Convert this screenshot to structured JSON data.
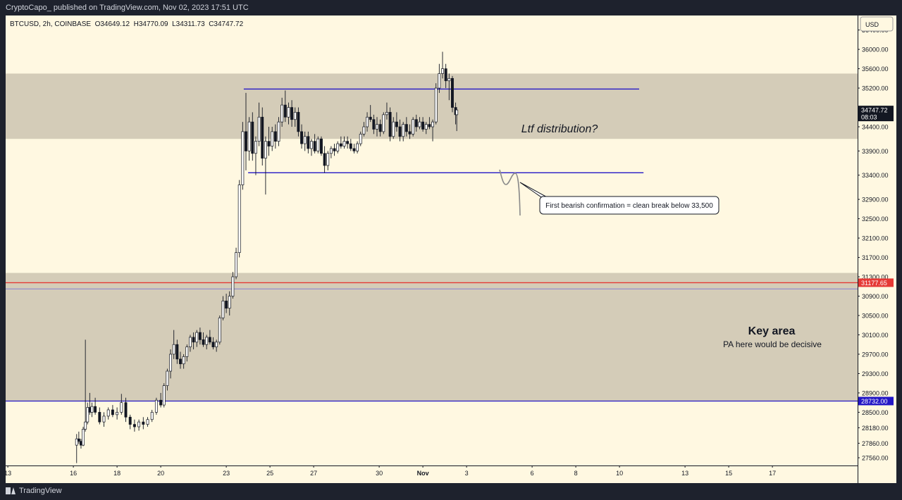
{
  "header": {
    "publish_info": "CryptoCapo_ published on TradingView.com, Nov 02, 2023 17:51 UTC"
  },
  "footer": {
    "brand": "TradingView",
    "brand_icon": "tradingview-logo-icon"
  },
  "colors": {
    "background": "#fff8e1",
    "zone": "#d4ccb8",
    "candle_up": "#ffffff",
    "candle_down": "#131722",
    "level_line": "#2317c6",
    "red_line": "#e53935",
    "price_tag_dark": "#131722",
    "price_tag_red": "#e53935",
    "price_tag_blue": "#2317c6"
  },
  "chart_data": {
    "type": "candlestick",
    "symbol_line": "BTCUSD, 2h, COINBASE  O34649.12  H34770.09  L34311.73  C34747.72",
    "currency": "USD",
    "ylim": [
      27400,
      36700
    ],
    "y_ticks": [
      "36400.00",
      "36000.00",
      "35600.00",
      "35200.00",
      "34400.00",
      "33900.00",
      "33400.00",
      "32900.00",
      "32500.00",
      "32100.00",
      "31700.00",
      "31300.00",
      "30900.00",
      "30500.00",
      "30100.00",
      "29700.00",
      "29300.00",
      "28900.00",
      "28500.00",
      "28180.00",
      "27860.00",
      "27560.00"
    ],
    "x_ticks": [
      {
        "label": "13",
        "day": 13
      },
      {
        "label": "16",
        "day": 16
      },
      {
        "label": "18",
        "day": 18
      },
      {
        "label": "20",
        "day": 20
      },
      {
        "label": "23",
        "day": 23
      },
      {
        "label": "25",
        "day": 25
      },
      {
        "label": "27",
        "day": 27
      },
      {
        "label": "30",
        "day": 30
      },
      {
        "label": "Nov",
        "day": 32
      },
      {
        "label": "3",
        "day": 34
      },
      {
        "label": "6",
        "day": 37
      },
      {
        "label": "8",
        "day": 39
      },
      {
        "label": "10",
        "day": 41
      },
      {
        "label": "13",
        "day": 44
      },
      {
        "label": "15",
        "day": 46
      },
      {
        "label": "17",
        "day": 48
      }
    ],
    "xlim_day": [
      12.9,
      51.9
    ],
    "price_labels": [
      {
        "value": 34747.72,
        "text": "34747.72",
        "sub": "08:03",
        "style": "dark"
      },
      {
        "value": 31177.65,
        "text": "31177.65",
        "style": "red"
      },
      {
        "value": 28732.0,
        "text": "28732.00",
        "style": "blue"
      }
    ],
    "zones": [
      {
        "from": 34150,
        "to": 35500
      },
      {
        "from": 28732,
        "to": 31380
      }
    ],
    "horizontal_lines": [
      {
        "value": 31177.65,
        "color": "red",
        "from_day": 12.9,
        "to_day": 51.9
      },
      {
        "value": 31050,
        "color": "blue-thin",
        "from_day": 12.9,
        "to_day": 51.9
      },
      {
        "value": 28732,
        "color": "blue",
        "from_day": 12.9,
        "to_day": 51.9
      },
      {
        "value": 35180,
        "color": "blue",
        "from_day": 23.8,
        "to_day": 41.9
      },
      {
        "value": 33450,
        "color": "blue",
        "from_day": 24.0,
        "to_day": 42.1
      }
    ],
    "annotations": {
      "ltf_text": "Ltf distribution?",
      "key_area_title": "Key area",
      "key_area_subtitle": "PA here would be decisive",
      "callout_text": "First bearish confirmation = clean break below 33,500"
    },
    "candles": [
      {
        "d": 16.15,
        "o": 27820,
        "h": 28050,
        "l": 27450,
        "c": 27950
      },
      {
        "d": 16.25,
        "o": 27950,
        "h": 28100,
        "l": 27850,
        "c": 27900
      },
      {
        "d": 16.35,
        "o": 27900,
        "h": 27950,
        "l": 27750,
        "c": 27820
      },
      {
        "d": 16.45,
        "o": 27820,
        "h": 28200,
        "l": 27800,
        "c": 28150
      },
      {
        "d": 16.55,
        "o": 28150,
        "h": 30000,
        "l": 28100,
        "c": 28300
      },
      {
        "d": 16.65,
        "o": 28300,
        "h": 28700,
        "l": 28250,
        "c": 28600
      },
      {
        "d": 16.75,
        "o": 28600,
        "h": 28900,
        "l": 28450,
        "c": 28500
      },
      {
        "d": 16.85,
        "o": 28500,
        "h": 28700,
        "l": 28400,
        "c": 28620
      },
      {
        "d": 17.0,
        "o": 28620,
        "h": 28800,
        "l": 28450,
        "c": 28500
      },
      {
        "d": 17.2,
        "o": 28500,
        "h": 28600,
        "l": 28250,
        "c": 28300
      },
      {
        "d": 17.4,
        "o": 28300,
        "h": 28500,
        "l": 28200,
        "c": 28420
      },
      {
        "d": 17.6,
        "o": 28420,
        "h": 28600,
        "l": 28350,
        "c": 28550
      },
      {
        "d": 17.8,
        "o": 28550,
        "h": 28650,
        "l": 28400,
        "c": 28450
      },
      {
        "d": 18.0,
        "o": 28450,
        "h": 28600,
        "l": 28350,
        "c": 28500
      },
      {
        "d": 18.2,
        "o": 28500,
        "h": 28880,
        "l": 28450,
        "c": 28700
      },
      {
        "d": 18.4,
        "o": 28700,
        "h": 28800,
        "l": 28300,
        "c": 28400
      },
      {
        "d": 18.6,
        "o": 28400,
        "h": 28450,
        "l": 28150,
        "c": 28250
      },
      {
        "d": 18.8,
        "o": 28250,
        "h": 28350,
        "l": 28100,
        "c": 28200
      },
      {
        "d": 19.0,
        "o": 28200,
        "h": 28350,
        "l": 28120,
        "c": 28300
      },
      {
        "d": 19.2,
        "o": 28300,
        "h": 28400,
        "l": 28150,
        "c": 28250
      },
      {
        "d": 19.4,
        "o": 28250,
        "h": 28400,
        "l": 28200,
        "c": 28350
      },
      {
        "d": 19.6,
        "o": 28350,
        "h": 28550,
        "l": 28300,
        "c": 28500
      },
      {
        "d": 19.8,
        "o": 28500,
        "h": 28800,
        "l": 28450,
        "c": 28750
      },
      {
        "d": 20.0,
        "o": 28750,
        "h": 28900,
        "l": 28600,
        "c": 28650
      },
      {
        "d": 20.15,
        "o": 28650,
        "h": 29100,
        "l": 28600,
        "c": 29050
      },
      {
        "d": 20.3,
        "o": 29050,
        "h": 29400,
        "l": 28950,
        "c": 29350
      },
      {
        "d": 20.45,
        "o": 29350,
        "h": 29800,
        "l": 29200,
        "c": 29700
      },
      {
        "d": 20.6,
        "o": 29700,
        "h": 30200,
        "l": 29600,
        "c": 29900
      },
      {
        "d": 20.75,
        "o": 29900,
        "h": 30000,
        "l": 29500,
        "c": 29600
      },
      {
        "d": 20.9,
        "o": 29600,
        "h": 29750,
        "l": 29400,
        "c": 29500
      },
      {
        "d": 21.05,
        "o": 29500,
        "h": 29700,
        "l": 29400,
        "c": 29650
      },
      {
        "d": 21.2,
        "o": 29650,
        "h": 29900,
        "l": 29550,
        "c": 29850
      },
      {
        "d": 21.35,
        "o": 29850,
        "h": 30100,
        "l": 29750,
        "c": 30050
      },
      {
        "d": 21.5,
        "o": 30050,
        "h": 30150,
        "l": 29800,
        "c": 29950
      },
      {
        "d": 21.65,
        "o": 29950,
        "h": 30200,
        "l": 29850,
        "c": 30150
      },
      {
        "d": 21.8,
        "o": 30150,
        "h": 30250,
        "l": 29900,
        "c": 30000
      },
      {
        "d": 21.95,
        "o": 30000,
        "h": 30150,
        "l": 29850,
        "c": 29900
      },
      {
        "d": 22.1,
        "o": 29900,
        "h": 30100,
        "l": 29800,
        "c": 30050
      },
      {
        "d": 22.25,
        "o": 30050,
        "h": 30200,
        "l": 29900,
        "c": 29950
      },
      {
        "d": 22.4,
        "o": 29950,
        "h": 30050,
        "l": 29800,
        "c": 29850
      },
      {
        "d": 22.55,
        "o": 29850,
        "h": 30000,
        "l": 29750,
        "c": 29950
      },
      {
        "d": 22.7,
        "o": 29950,
        "h": 30500,
        "l": 29900,
        "c": 30450
      },
      {
        "d": 22.85,
        "o": 30450,
        "h": 30900,
        "l": 30400,
        "c": 30800
      },
      {
        "d": 23.0,
        "o": 30800,
        "h": 30950,
        "l": 30550,
        "c": 30650
      },
      {
        "d": 23.15,
        "o": 30650,
        "h": 31000,
        "l": 30500,
        "c": 30900
      },
      {
        "d": 23.3,
        "o": 30900,
        "h": 31400,
        "l": 30850,
        "c": 31300
      },
      {
        "d": 23.45,
        "o": 31300,
        "h": 31900,
        "l": 31250,
        "c": 31800
      },
      {
        "d": 23.6,
        "o": 31800,
        "h": 33300,
        "l": 31700,
        "c": 33200
      },
      {
        "d": 23.75,
        "o": 33200,
        "h": 34500,
        "l": 33100,
        "c": 34300
      },
      {
        "d": 23.9,
        "o": 34300,
        "h": 35100,
        "l": 33500,
        "c": 33900
      },
      {
        "d": 24.05,
        "o": 33900,
        "h": 34600,
        "l": 33700,
        "c": 34500
      },
      {
        "d": 24.2,
        "o": 34500,
        "h": 34700,
        "l": 33700,
        "c": 33850
      },
      {
        "d": 24.35,
        "o": 33850,
        "h": 34200,
        "l": 33400,
        "c": 34100
      },
      {
        "d": 24.5,
        "o": 34100,
        "h": 34900,
        "l": 34000,
        "c": 34600
      },
      {
        "d": 24.65,
        "o": 34600,
        "h": 34800,
        "l": 33600,
        "c": 33750
      },
      {
        "d": 24.8,
        "o": 33750,
        "h": 34200,
        "l": 33000,
        "c": 34100
      },
      {
        "d": 24.95,
        "o": 34100,
        "h": 34400,
        "l": 33800,
        "c": 34000
      },
      {
        "d": 25.1,
        "o": 34000,
        "h": 34400,
        "l": 33900,
        "c": 34300
      },
      {
        "d": 25.25,
        "o": 34300,
        "h": 34450,
        "l": 33950,
        "c": 34100
      },
      {
        "d": 25.4,
        "o": 34100,
        "h": 34600,
        "l": 34000,
        "c": 34500
      },
      {
        "d": 25.55,
        "o": 34500,
        "h": 35000,
        "l": 34400,
        "c": 34850
      },
      {
        "d": 25.7,
        "o": 34850,
        "h": 35150,
        "l": 34500,
        "c": 34600
      },
      {
        "d": 25.85,
        "o": 34600,
        "h": 34900,
        "l": 34450,
        "c": 34800
      },
      {
        "d": 26.0,
        "o": 34800,
        "h": 34950,
        "l": 34400,
        "c": 34550
      },
      {
        "d": 26.15,
        "o": 34550,
        "h": 34800,
        "l": 34400,
        "c": 34700
      },
      {
        "d": 26.3,
        "o": 34700,
        "h": 34800,
        "l": 34200,
        "c": 34300
      },
      {
        "d": 26.45,
        "o": 34300,
        "h": 34450,
        "l": 33950,
        "c": 34050
      },
      {
        "d": 26.6,
        "o": 34050,
        "h": 34300,
        "l": 33900,
        "c": 34200
      },
      {
        "d": 26.75,
        "o": 34200,
        "h": 34300,
        "l": 33850,
        "c": 33950
      },
      {
        "d": 26.9,
        "o": 33950,
        "h": 34150,
        "l": 33800,
        "c": 34100
      },
      {
        "d": 27.05,
        "o": 34100,
        "h": 34250,
        "l": 33850,
        "c": 33900
      },
      {
        "d": 27.2,
        "o": 33900,
        "h": 34200,
        "l": 33850,
        "c": 34150
      },
      {
        "d": 27.35,
        "o": 34150,
        "h": 34200,
        "l": 33800,
        "c": 33850
      },
      {
        "d": 27.5,
        "o": 33850,
        "h": 34000,
        "l": 33450,
        "c": 33600
      },
      {
        "d": 27.65,
        "o": 33600,
        "h": 33900,
        "l": 33500,
        "c": 33850
      },
      {
        "d": 27.8,
        "o": 33850,
        "h": 34000,
        "l": 33750,
        "c": 33950
      },
      {
        "d": 27.95,
        "o": 33950,
        "h": 34050,
        "l": 33800,
        "c": 33900
      },
      {
        "d": 28.1,
        "o": 33900,
        "h": 34100,
        "l": 33850,
        "c": 34050
      },
      {
        "d": 28.25,
        "o": 34050,
        "h": 34200,
        "l": 33950,
        "c": 34000
      },
      {
        "d": 28.4,
        "o": 34000,
        "h": 34200,
        "l": 33950,
        "c": 34100
      },
      {
        "d": 28.55,
        "o": 34100,
        "h": 34200,
        "l": 33950,
        "c": 34050
      },
      {
        "d": 28.7,
        "o": 34050,
        "h": 34150,
        "l": 33900,
        "c": 33950
      },
      {
        "d": 28.85,
        "o": 33950,
        "h": 34050,
        "l": 33850,
        "c": 33900
      },
      {
        "d": 29.0,
        "o": 33900,
        "h": 34100,
        "l": 33850,
        "c": 34050
      },
      {
        "d": 29.15,
        "o": 34050,
        "h": 34300,
        "l": 34000,
        "c": 34250
      },
      {
        "d": 29.3,
        "o": 34250,
        "h": 34500,
        "l": 34200,
        "c": 34400
      },
      {
        "d": 29.45,
        "o": 34400,
        "h": 34700,
        "l": 34300,
        "c": 34600
      },
      {
        "d": 29.6,
        "o": 34600,
        "h": 34850,
        "l": 34500,
        "c": 34550
      },
      {
        "d": 29.75,
        "o": 34550,
        "h": 34650,
        "l": 34250,
        "c": 34350
      },
      {
        "d": 29.9,
        "o": 34350,
        "h": 34600,
        "l": 34200,
        "c": 34450
      },
      {
        "d": 30.05,
        "o": 34450,
        "h": 34550,
        "l": 34200,
        "c": 34300
      },
      {
        "d": 30.2,
        "o": 34300,
        "h": 34700,
        "l": 34250,
        "c": 34650
      },
      {
        "d": 30.35,
        "o": 34650,
        "h": 34900,
        "l": 34550,
        "c": 34700
      },
      {
        "d": 30.5,
        "o": 34700,
        "h": 34800,
        "l": 34100,
        "c": 34200
      },
      {
        "d": 30.65,
        "o": 34200,
        "h": 34600,
        "l": 34150,
        "c": 34500
      },
      {
        "d": 30.8,
        "o": 34500,
        "h": 34700,
        "l": 34300,
        "c": 34400
      },
      {
        "d": 30.95,
        "o": 34400,
        "h": 34550,
        "l": 34100,
        "c": 34200
      },
      {
        "d": 31.1,
        "o": 34200,
        "h": 34500,
        "l": 34100,
        "c": 34450
      },
      {
        "d": 31.25,
        "o": 34450,
        "h": 34600,
        "l": 34200,
        "c": 34300
      },
      {
        "d": 31.4,
        "o": 34300,
        "h": 34450,
        "l": 34150,
        "c": 34250
      },
      {
        "d": 31.55,
        "o": 34250,
        "h": 34600,
        "l": 34200,
        "c": 34550
      },
      {
        "d": 31.7,
        "o": 34550,
        "h": 34650,
        "l": 34300,
        "c": 34400
      },
      {
        "d": 31.85,
        "o": 34400,
        "h": 34600,
        "l": 34350,
        "c": 34500
      },
      {
        "d": 32.0,
        "o": 34500,
        "h": 34600,
        "l": 34300,
        "c": 34350
      },
      {
        "d": 32.15,
        "o": 34350,
        "h": 34500,
        "l": 34250,
        "c": 34450
      },
      {
        "d": 32.3,
        "o": 34450,
        "h": 34600,
        "l": 34350,
        "c": 34400
      },
      {
        "d": 32.45,
        "o": 34400,
        "h": 34550,
        "l": 34100,
        "c": 34500
      },
      {
        "d": 32.6,
        "o": 34500,
        "h": 35300,
        "l": 34450,
        "c": 35200
      },
      {
        "d": 32.75,
        "o": 35200,
        "h": 35700,
        "l": 35100,
        "c": 35500
      },
      {
        "d": 32.9,
        "o": 35500,
        "h": 35950,
        "l": 35400,
        "c": 35600
      },
      {
        "d": 33.05,
        "o": 35600,
        "h": 35700,
        "l": 35200,
        "c": 35350
      },
      {
        "d": 33.2,
        "o": 35350,
        "h": 35500,
        "l": 34950,
        "c": 35400
      },
      {
        "d": 33.35,
        "o": 35400,
        "h": 35450,
        "l": 34700,
        "c": 34800
      },
      {
        "d": 33.5,
        "o": 34800,
        "h": 34900,
        "l": 34450,
        "c": 34650
      },
      {
        "d": 33.55,
        "o": 34649.12,
        "h": 34770.09,
        "l": 34311.73,
        "c": 34747.72
      }
    ]
  }
}
